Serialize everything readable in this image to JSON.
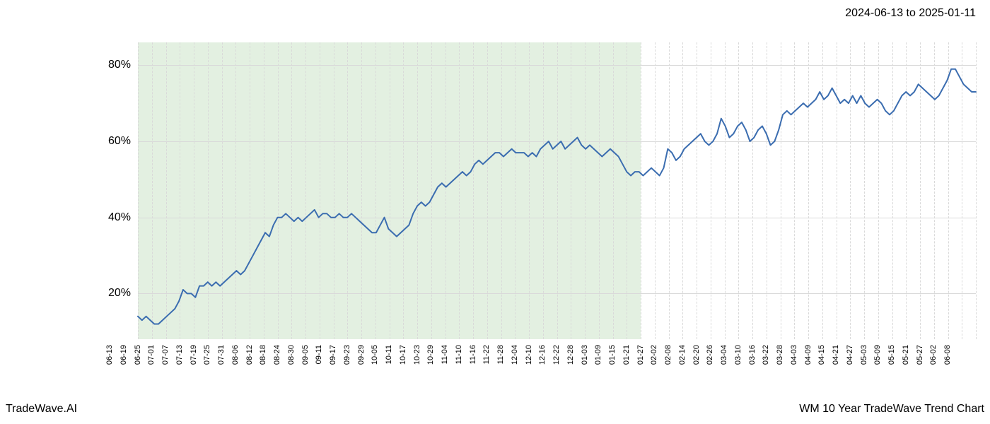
{
  "header": {
    "date_range": "2024-06-13 to 2025-01-11"
  },
  "footer": {
    "brand": "TradeWave.AI",
    "chart_title": "WM 10 Year TradeWave Trend Chart"
  },
  "chart": {
    "type": "line",
    "background_color": "#ffffff",
    "grid_color": "#d9d9d9",
    "highlight_fill": "rgba(200,225,195,0.5)",
    "line_color": "#3b6db0",
    "line_width": 2,
    "title_fontsize": 16,
    "label_fontsize": 16,
    "tick_fontsize_x": 11,
    "tick_fontsize_y": 16,
    "y_axis": {
      "min": 8,
      "max": 86,
      "ticks": [
        20,
        40,
        60,
        80
      ],
      "tick_labels": [
        "20%",
        "40%",
        "60%",
        "80%"
      ]
    },
    "x_axis": {
      "labels": [
        "06-13",
        "06-19",
        "06-25",
        "07-01",
        "07-07",
        "07-13",
        "07-19",
        "07-25",
        "07-31",
        "08-06",
        "08-12",
        "08-18",
        "08-24",
        "08-30",
        "09-05",
        "09-11",
        "09-17",
        "09-23",
        "09-29",
        "10-05",
        "10-11",
        "10-17",
        "10-23",
        "10-29",
        "11-04",
        "11-10",
        "11-16",
        "11-22",
        "11-28",
        "12-04",
        "12-10",
        "12-16",
        "12-22",
        "12-28",
        "01-03",
        "01-09",
        "01-15",
        "01-21",
        "01-27",
        "02-02",
        "02-08",
        "02-14",
        "02-20",
        "02-26",
        "03-04",
        "03-10",
        "03-16",
        "03-22",
        "03-28",
        "04-03",
        "04-09",
        "04-15",
        "04-21",
        "04-27",
        "05-03",
        "05-09",
        "05-15",
        "05-21",
        "05-27",
        "06-02",
        "06-08"
      ]
    },
    "highlight": {
      "start_index": 0,
      "end_index": 36
    },
    "series": {
      "name": "WM",
      "values": [
        14,
        13,
        14,
        13,
        12,
        12,
        13,
        14,
        15,
        16,
        18,
        21,
        20,
        20,
        19,
        22,
        22,
        23,
        22,
        23,
        22,
        23,
        24,
        25,
        26,
        25,
        26,
        28,
        30,
        32,
        34,
        36,
        35,
        38,
        40,
        40,
        41,
        40,
        39,
        40,
        39,
        40,
        41,
        42,
        40,
        41,
        41,
        40,
        40,
        41,
        40,
        40,
        41,
        40,
        39,
        38,
        37,
        36,
        36,
        38,
        40,
        37,
        36,
        35,
        36,
        37,
        38,
        41,
        43,
        44,
        43,
        44,
        46,
        48,
        49,
        48,
        49,
        50,
        51,
        52,
        51,
        52,
        54,
        55,
        54,
        55,
        56,
        57,
        57,
        56,
        57,
        58,
        57,
        57,
        57,
        56,
        57,
        56,
        58,
        59,
        60,
        58,
        59,
        60,
        58,
        59,
        60,
        61,
        59,
        58,
        59,
        58,
        57,
        56,
        57,
        58,
        57,
        56,
        54,
        52,
        51,
        52,
        52,
        51,
        52,
        53,
        52,
        51,
        53,
        58,
        57,
        55,
        56,
        58,
        59,
        60,
        61,
        62,
        60,
        59,
        60,
        62,
        66,
        64,
        61,
        62,
        64,
        65,
        63,
        60,
        61,
        63,
        64,
        62,
        59,
        60,
        63,
        67,
        68,
        67,
        68,
        69,
        70,
        69,
        70,
        71,
        73,
        71,
        72,
        74,
        72,
        70,
        71,
        70,
        72,
        70,
        72,
        70,
        69,
        70,
        71,
        70,
        68,
        67,
        68,
        70,
        72,
        73,
        72,
        73,
        75,
        74,
        73,
        72,
        71,
        72,
        74,
        76,
        79,
        79,
        77,
        75,
        74,
        73,
        73
      ]
    }
  }
}
